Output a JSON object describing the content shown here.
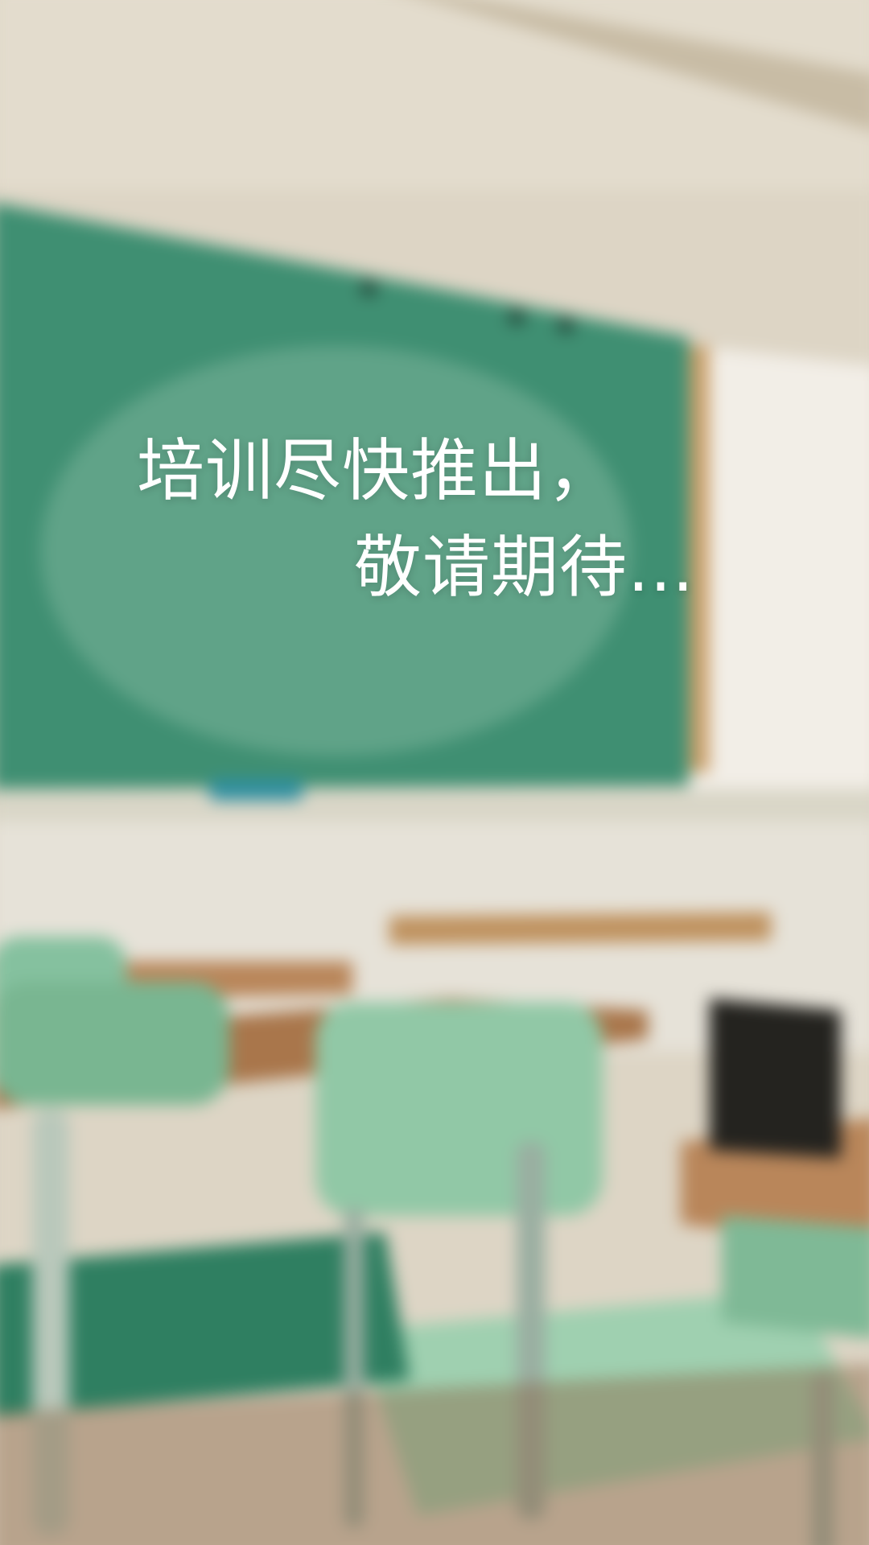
{
  "message": {
    "line1": "培训尽快推出，",
    "line2": "敬请期待..."
  },
  "background": {
    "icon": "classroom-background",
    "colors": {
      "wall": "#ddd5c5",
      "chalkboard": "#3f8f72",
      "chalkboard_light": "#7fb49b",
      "desk_wood": "#b9865a",
      "chair_green": "#79b691",
      "chair_dark": "#2f7f61",
      "floor": "#8b6548"
    }
  }
}
